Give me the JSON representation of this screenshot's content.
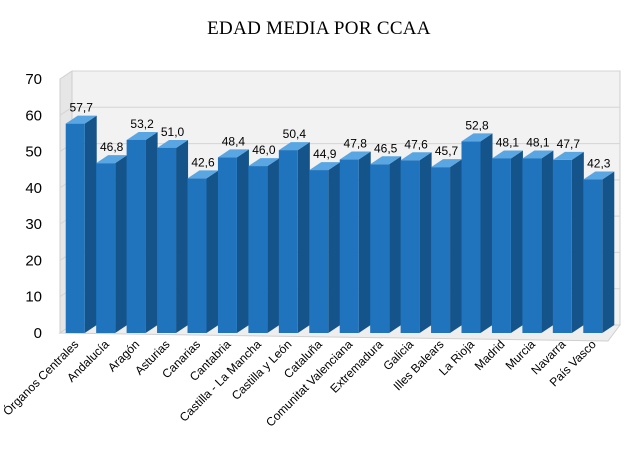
{
  "chart_data": {
    "type": "bar",
    "title": "EDAD MEDIA POR CCAA",
    "xlabel": "",
    "ylabel": "",
    "ylim": [
      0,
      70
    ],
    "yticks": [
      0,
      10,
      20,
      30,
      40,
      50,
      60,
      70
    ],
    "grid": true,
    "categories": [
      "Órganos Centrales",
      "Andalucía",
      "Aragón",
      "Asturias",
      "Canarias",
      "Cantabria",
      "Castilla - La Mancha",
      "Castilla y León",
      "Cataluña",
      "Comunitat Valenciana",
      "Extremadura",
      "Galicia",
      "Illes Balears",
      "La Rioja",
      "Madrid",
      "Murcia",
      "Navarra",
      "País Vasco"
    ],
    "values": [
      57.7,
      46.8,
      53.2,
      51.0,
      42.6,
      48.4,
      46.0,
      50.4,
      44.9,
      47.8,
      46.5,
      47.6,
      45.7,
      52.8,
      48.1,
      48.1,
      47.7,
      42.3
    ],
    "data_labels": [
      "57,7",
      "46,8",
      "53,2",
      "51,0",
      "42,6",
      "48,4",
      "46,0",
      "50,4",
      "44,9",
      "47,8",
      "46,5",
      "47,6",
      "45,7",
      "52,8",
      "48,1",
      "48,1",
      "47,7",
      "42,3"
    ],
    "colors": {
      "bar_front": "#1f74bd",
      "bar_side": "#14548a",
      "bar_top": "#5aa6e2",
      "grid": "#d4d4d4",
      "wall": "#f2f2f2"
    }
  }
}
